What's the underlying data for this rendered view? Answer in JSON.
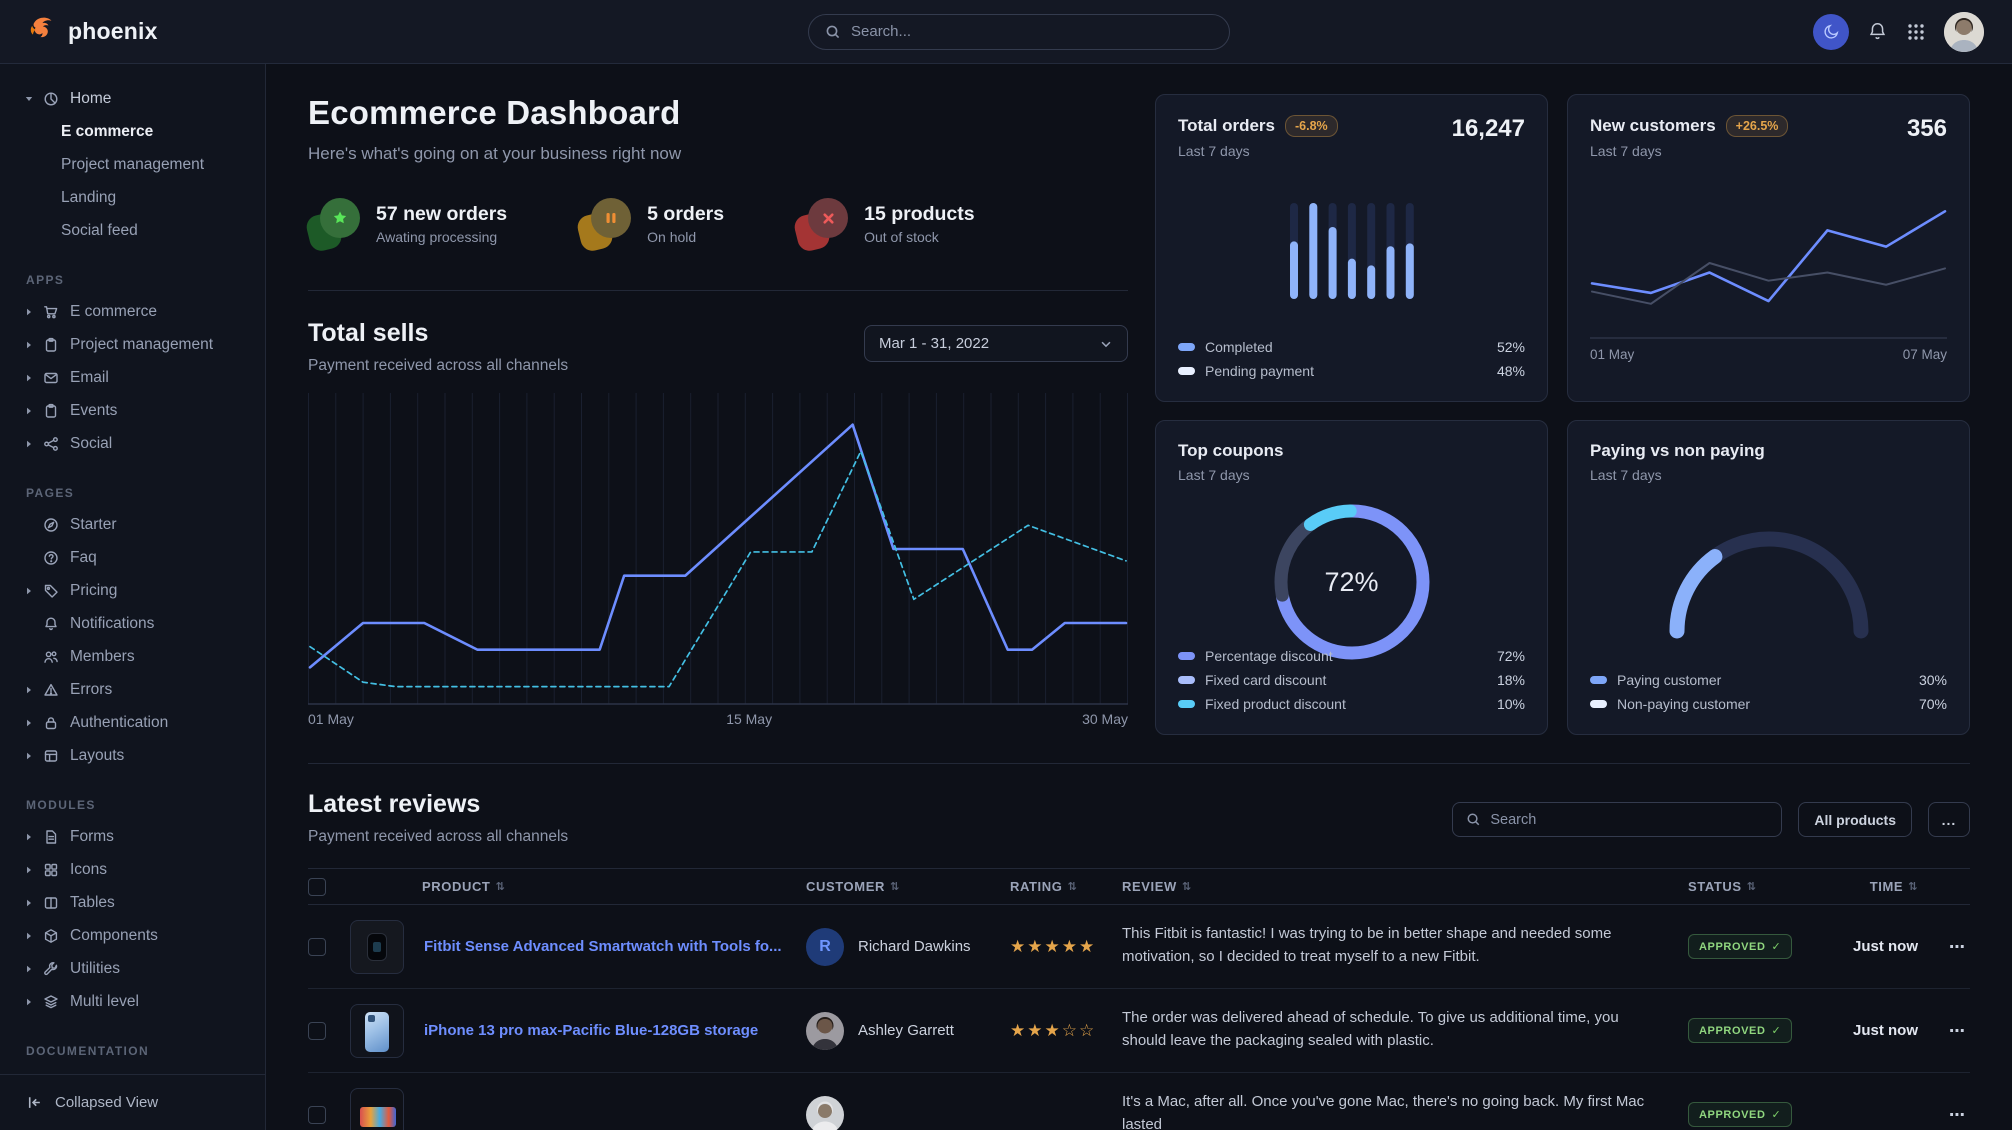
{
  "navbar": {
    "brand": "phoenix",
    "search_placeholder": "Search..."
  },
  "sidebar": {
    "home": {
      "label": "Home",
      "children": [
        "E commerce",
        "Project management",
        "Landing",
        "Social feed"
      ],
      "active_child": 0
    },
    "groups": [
      {
        "title": "APPS",
        "items": [
          {
            "label": "E commerce",
            "icon": "cart",
            "caret": true
          },
          {
            "label": "Project management",
            "icon": "clipboard",
            "caret": true
          },
          {
            "label": "Email",
            "icon": "mail",
            "caret": true
          },
          {
            "label": "Events",
            "icon": "clipboard",
            "caret": true
          },
          {
            "label": "Social",
            "icon": "share",
            "caret": true
          }
        ]
      },
      {
        "title": "PAGES",
        "items": [
          {
            "label": "Starter",
            "icon": "compass",
            "caret": false
          },
          {
            "label": "Faq",
            "icon": "question",
            "caret": false
          },
          {
            "label": "Pricing",
            "icon": "tag",
            "caret": true
          },
          {
            "label": "Notifications",
            "icon": "bell",
            "caret": false
          },
          {
            "label": "Members",
            "icon": "users",
            "caret": false
          },
          {
            "label": "Errors",
            "icon": "warning",
            "caret": true
          },
          {
            "label": "Authentication",
            "icon": "lock",
            "caret": true
          },
          {
            "label": "Layouts",
            "icon": "layout",
            "caret": true
          }
        ]
      },
      {
        "title": "MODULES",
        "items": [
          {
            "label": "Forms",
            "icon": "file",
            "caret": true
          },
          {
            "label": "Icons",
            "icon": "grid",
            "caret": true
          },
          {
            "label": "Tables",
            "icon": "columns",
            "caret": true
          },
          {
            "label": "Components",
            "icon": "cube",
            "caret": true
          },
          {
            "label": "Utilities",
            "icon": "wrench",
            "caret": true
          },
          {
            "label": "Multi level",
            "icon": "layers",
            "caret": true
          }
        ]
      },
      {
        "title": "DOCUMENTATION",
        "items": []
      }
    ],
    "collapsed_label": "Collapsed View"
  },
  "page": {
    "title": "Ecommerce Dashboard",
    "subtitle": "Here's what's going on at your business right now"
  },
  "stats": [
    {
      "value": "57 new orders",
      "caption": "Awating processing",
      "tone": "success"
    },
    {
      "value": "5 orders",
      "caption": "On hold",
      "tone": "warning"
    },
    {
      "value": "15 products",
      "caption": "Out of stock",
      "tone": "danger"
    }
  ],
  "total_sells": {
    "title": "Total sells",
    "subtitle": "Payment received across all channels",
    "date_range": "Mar 1 - 31, 2022"
  },
  "cards": {
    "total_orders": {
      "title": "Total orders",
      "badge": "-6.8%",
      "period": "Last 7 days",
      "value": "16,247",
      "legend": [
        {
          "label": "Completed",
          "value": "52%",
          "color": "#7ea6f8"
        },
        {
          "label": "Pending payment",
          "value": "48%",
          "color": "#e9f0ff"
        }
      ]
    },
    "new_customers": {
      "title": "New customers",
      "badge": "+26.5%",
      "period": "Last 7 days",
      "value": "356",
      "x_labels": [
        "01 May",
        "07 May"
      ]
    },
    "top_coupons": {
      "title": "Top coupons",
      "period": "Last 7 days",
      "center_label": "72%",
      "legend": [
        {
          "label": "Percentage discount",
          "value": "72%",
          "color": "#7d93f8"
        },
        {
          "label": "Fixed card discount",
          "value": "18%",
          "color": "#a9bdfb"
        },
        {
          "label": "Fixed product discount",
          "value": "10%",
          "color": "#59ccf7"
        }
      ]
    },
    "paying": {
      "title": "Paying vs non paying",
      "period": "Last 7 days",
      "legend": [
        {
          "label": "Paying customer",
          "value": "30%",
          "color": "#7ea6f8"
        },
        {
          "label": "Non-paying customer",
          "value": "70%",
          "color": "#e9f0ff"
        }
      ]
    }
  },
  "chart_data": [
    {
      "id": "total-sells",
      "type": "line",
      "title": "Total sells",
      "x_labels": [
        "01 May",
        "15 May",
        "30 May"
      ],
      "grid": "vertical",
      "ylim": [
        0,
        100
      ],
      "series": [
        {
          "name": "current",
          "style": "solid",
          "color": "#6d8dff",
          "points": [
            [
              0,
              10
            ],
            [
              6.5,
              25
            ],
            [
              14,
              25
            ],
            [
              20.5,
              16
            ],
            [
              35.5,
              16
            ],
            [
              38.5,
              41
            ],
            [
              46,
              41
            ],
            [
              66.5,
              92
            ],
            [
              71.5,
              50
            ],
            [
              80,
              50
            ],
            [
              85.5,
              16
            ],
            [
              88.5,
              16
            ],
            [
              92.5,
              25
            ],
            [
              100,
              25
            ]
          ]
        },
        {
          "name": "previous",
          "style": "dashed",
          "color": "#43bfe3",
          "points": [
            [
              0,
              17
            ],
            [
              6.5,
              5
            ],
            [
              10.5,
              3.5
            ],
            [
              44,
              3.5
            ],
            [
              54,
              49
            ],
            [
              61.5,
              49
            ],
            [
              67.5,
              83
            ],
            [
              74,
              33
            ],
            [
              88,
              58
            ],
            [
              100,
              46
            ]
          ]
        }
      ]
    },
    {
      "id": "total-orders-bars",
      "type": "bar",
      "values": [
        60,
        100,
        75,
        42,
        35,
        55,
        58
      ],
      "ylim": [
        0,
        100
      ],
      "color": "#8fb3f9",
      "track_color": "#1e2845"
    },
    {
      "id": "new-customers-line",
      "type": "line",
      "x_labels": [
        "01 May",
        "07 May"
      ],
      "ylim": [
        0,
        100
      ],
      "series": [
        {
          "name": "new customers",
          "style": "solid",
          "color": "#6d8dff",
          "points": [
            [
              0,
              35
            ],
            [
              16.7,
              28
            ],
            [
              33.3,
              43
            ],
            [
              50,
              22
            ],
            [
              66.7,
              74
            ],
            [
              83.3,
              62
            ],
            [
              100,
              88
            ]
          ]
        },
        {
          "name": "previous period",
          "style": "solid",
          "color": "#474f66",
          "points": [
            [
              0,
              29
            ],
            [
              16.7,
              20
            ],
            [
              33.3,
              50
            ],
            [
              50,
              37
            ],
            [
              66.7,
              43
            ],
            [
              83.3,
              34
            ],
            [
              100,
              46
            ]
          ]
        }
      ]
    },
    {
      "id": "top-coupons-donut",
      "type": "pie",
      "labels": [
        "Percentage discount",
        "Fixed card discount",
        "Fixed product discount"
      ],
      "values": [
        72,
        18,
        10
      ],
      "colors": [
        "#7d93f8",
        "#3c4560",
        "#59ccf7"
      ],
      "center_label": "72%"
    },
    {
      "id": "paying-gauge",
      "type": "gauge",
      "labels": [
        "Paying customer",
        "Non-paying customer"
      ],
      "values": [
        30,
        70
      ],
      "colors": [
        "#8bb1fa",
        "#27304f"
      ]
    }
  ],
  "reviews": {
    "title": "Latest reviews",
    "subtitle": "Payment received across all channels",
    "search_placeholder": "Search",
    "filter_label": "All products",
    "more_label": "...",
    "columns": [
      "PRODUCT",
      "CUSTOMER",
      "RATING",
      "REVIEW",
      "STATUS",
      "TIME"
    ],
    "rows": [
      {
        "product": "Fitbit Sense Advanced Smartwatch with Tools fo...",
        "thumb": "fitbit",
        "customer": "Richard Dawkins",
        "avatar_letter": "R",
        "rating": 5,
        "review": "This Fitbit is fantastic! I was trying to be in better shape and needed some motivation, so I decided to treat myself to a new Fitbit.",
        "status": "APPROVED",
        "time": "Just now"
      },
      {
        "product": "iPhone 13 pro max-Pacific Blue-128GB storage",
        "thumb": "iphone",
        "customer": "Ashley Garrett",
        "avatar_letter": "",
        "rating": 3,
        "review": "The order was delivered ahead of schedule. To give us additional time, you should leave the packaging sealed with plastic.",
        "status": "APPROVED",
        "time": "Just now"
      },
      {
        "product": "",
        "thumb": "macbook",
        "customer": "",
        "avatar_letter": "",
        "rating": 0,
        "review": "It's a Mac, after all. Once you've gone Mac, there's no going back. My first Mac lasted",
        "status": "APPROVED",
        "time": ""
      }
    ]
  }
}
